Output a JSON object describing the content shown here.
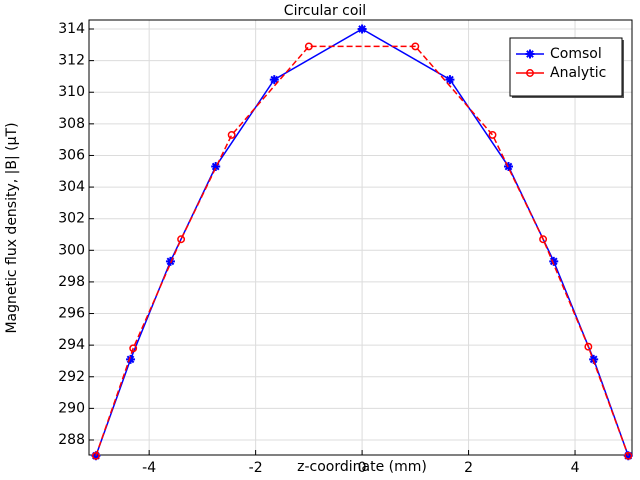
{
  "chart_data": {
    "type": "line",
    "title": "Circular coil",
    "xlabel": "z-coordinate (mm)",
    "ylabel": "Magnetic flux density, |B| (µT)",
    "xlim": [
      -5.13,
      5.07
    ],
    "ylim": [
      287.05,
      314.57
    ],
    "xticks": [
      -4,
      -2,
      0,
      2,
      4
    ],
    "yticks": [
      288,
      290,
      292,
      294,
      296,
      298,
      300,
      302,
      304,
      306,
      308,
      310,
      312,
      314
    ],
    "grid": true,
    "legend": "upper right",
    "series": [
      {
        "name": "Comsol",
        "color": "#0000ff",
        "marker": "asterisk",
        "dash": false,
        "x": [
          -5,
          -4.35,
          -3.6,
          -2.75,
          -1.65,
          0,
          1.65,
          2.75,
          3.6,
          4.35,
          5
        ],
        "values": [
          287.0,
          293.1,
          299.3,
          305.3,
          310.8,
          314.0,
          310.8,
          305.3,
          299.3,
          293.1,
          287.0
        ]
      },
      {
        "name": "Analytic",
        "color": "#ff0000",
        "marker": "circle",
        "dash": true,
        "x": [
          -5,
          -4.3,
          -3.4,
          -2.45,
          -1.0,
          1.0,
          2.45,
          3.4,
          4.25,
          5
        ],
        "values": [
          287.0,
          293.8,
          300.7,
          307.3,
          312.9,
          312.9,
          307.3,
          300.7,
          293.9,
          287.0
        ]
      }
    ]
  }
}
